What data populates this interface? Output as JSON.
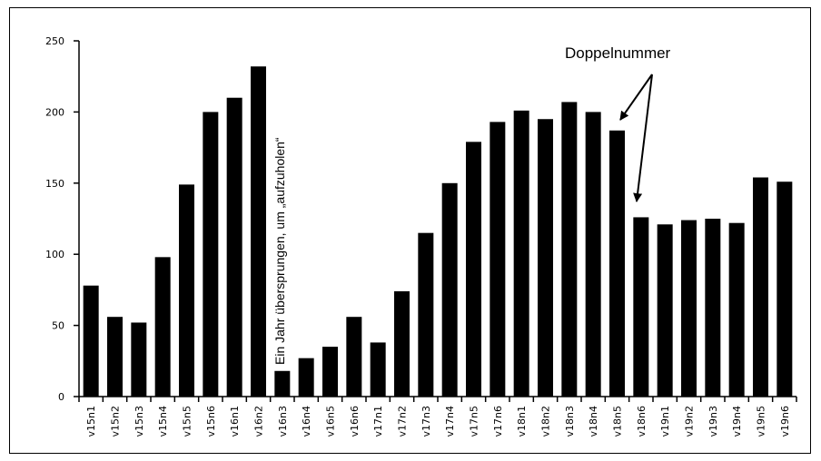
{
  "chart_data": {
    "type": "bar",
    "title": "",
    "xlabel": "",
    "ylabel": "",
    "ylim": [
      0,
      250
    ],
    "yticks": [
      0,
      50,
      100,
      150,
      200,
      250
    ],
    "grid": false,
    "legend": "none",
    "bar_color": "#000000",
    "categories": [
      "v15n1",
      "v15n2",
      "v15n3",
      "v15n4",
      "v15n5",
      "v15n6",
      "v16n1",
      "v16n2",
      "v16n3",
      "v16n4",
      "v16n5",
      "v16n6",
      "v17n1",
      "v17n2",
      "v17n3",
      "v17n4",
      "v17n5",
      "v17n6",
      "v18n1",
      "v18n2",
      "v18n3",
      "v18n4",
      "v18n5",
      "v18n6",
      "v19n1",
      "v19n2",
      "v19n3",
      "v19n4",
      "v19n5",
      "v19n6"
    ],
    "values": [
      78,
      56,
      52,
      98,
      149,
      200,
      210,
      232,
      18,
      27,
      35,
      56,
      38,
      74,
      115,
      150,
      179,
      193,
      201,
      195,
      207,
      200,
      187,
      126,
      121,
      124,
      125,
      122,
      154,
      151
    ],
    "annotations": {
      "vertical_note": "Ein Jahr übersprungen, um „aufzuholen“",
      "doppel": "Doppelnummer"
    }
  }
}
